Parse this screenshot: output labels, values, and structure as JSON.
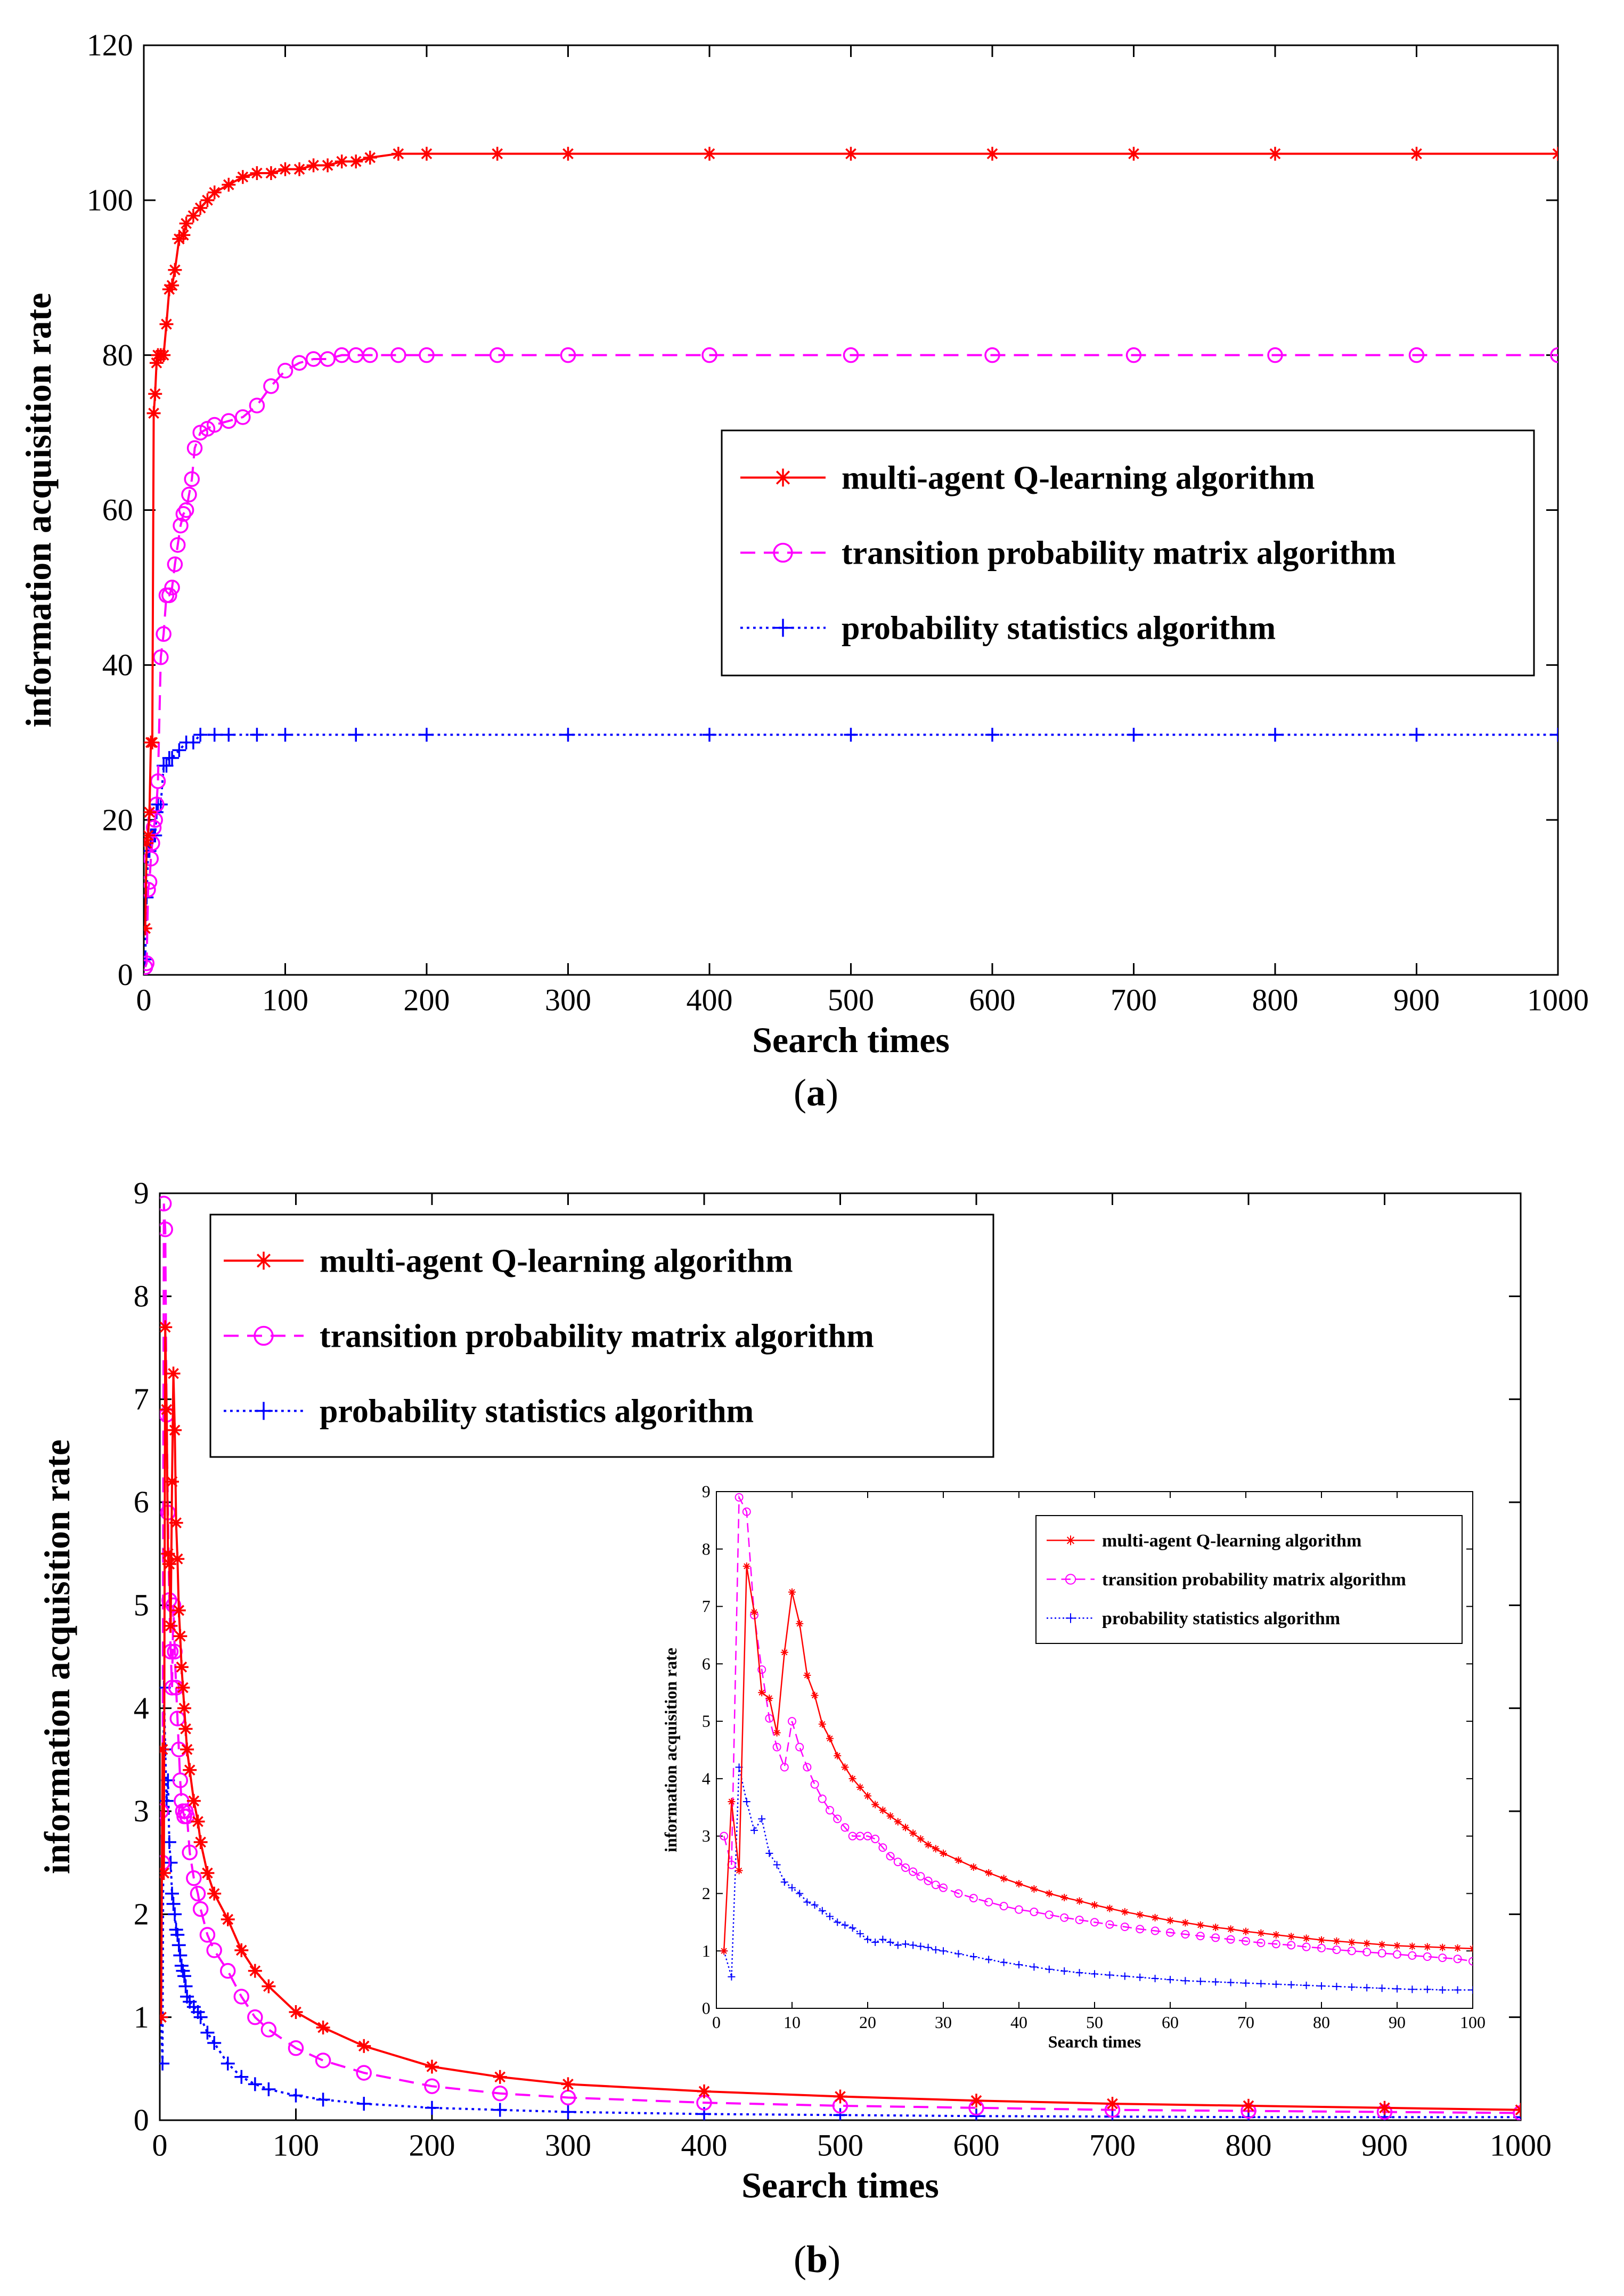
{
  "colors": {
    "q": "#ff0000",
    "tpm": "#ff00ff",
    "ps": "#0000ff",
    "axis": "#000000"
  },
  "chart_data": [
    {
      "id": "a",
      "type": "line",
      "caption": {
        "open": "(",
        "letter": "a",
        "close": ")"
      },
      "xlabel": "Search times",
      "ylabel": "information acquisition rate",
      "xlim": [
        0,
        1000
      ],
      "ylim": [
        0,
        120
      ],
      "xticks": [
        "0",
        "100",
        "200",
        "300",
        "400",
        "500",
        "600",
        "700",
        "800",
        "900",
        "1000"
      ],
      "yticks": [
        "0",
        "20",
        "40",
        "60",
        "80",
        "100",
        "120"
      ],
      "legend_position": "right-middle",
      "series": [
        {
          "name": "multi-agent Q-learning algorithm",
          "color_key": "q",
          "marker": "asterisk",
          "dash": "solid",
          "x": [
            1,
            2,
            3,
            4,
            5,
            6,
            7,
            8,
            9,
            10,
            12,
            14,
            16,
            18,
            20,
            22,
            25,
            28,
            30,
            35,
            40,
            45,
            50,
            60,
            70,
            80,
            90,
            100,
            110,
            120,
            130,
            140,
            150,
            160,
            180,
            200,
            250,
            300,
            400,
            500,
            600,
            700,
            800,
            900,
            1000
          ],
          "y": [
            6,
            17,
            18,
            21,
            30,
            30,
            72.5,
            75,
            79,
            80,
            80,
            80,
            84,
            88.5,
            89,
            91,
            95,
            95.5,
            97,
            98,
            99,
            100,
            101,
            102,
            103,
            103.5,
            103.5,
            104,
            104,
            104.5,
            104.5,
            105,
            105,
            105.5,
            106,
            106,
            106,
            106,
            106,
            106,
            106,
            106,
            106,
            106,
            106
          ]
        },
        {
          "name": "transition probability matrix algorithm",
          "color_key": "tpm",
          "marker": "circle",
          "dash": "dashed",
          "x": [
            1,
            2,
            3,
            4,
            5,
            6,
            7,
            8,
            9,
            10,
            12,
            14,
            16,
            18,
            20,
            22,
            24,
            26,
            28,
            30,
            32,
            34,
            36,
            40,
            45,
            50,
            60,
            70,
            80,
            90,
            100,
            110,
            120,
            130,
            140,
            150,
            160,
            180,
            200,
            250,
            300,
            400,
            500,
            600,
            700,
            800,
            900,
            1000
          ],
          "y": [
            1,
            1.5,
            11,
            12,
            15,
            17,
            19,
            20,
            22,
            25,
            41,
            44,
            49,
            49,
            50,
            53,
            55.5,
            58,
            59.5,
            60,
            62,
            64,
            68,
            70,
            70.5,
            71,
            71.5,
            72,
            73.5,
            76,
            78,
            79,
            79.5,
            79.5,
            80,
            80,
            80,
            80,
            80,
            80,
            80,
            80,
            80,
            80,
            80,
            80,
            80,
            80
          ]
        },
        {
          "name": "probability statistics algorithm",
          "color_key": "ps",
          "marker": "plus",
          "dash": "dotted",
          "x": [
            1,
            2,
            3,
            4,
            5,
            6,
            7,
            8,
            9,
            10,
            12,
            14,
            16,
            18,
            20,
            25,
            30,
            35,
            40,
            50,
            60,
            80,
            100,
            150,
            200,
            300,
            400,
            500,
            600,
            700,
            800,
            900,
            1000
          ],
          "y": [
            2,
            10,
            16,
            16,
            18,
            18,
            18,
            18,
            21,
            22,
            22,
            27,
            27,
            28,
            28,
            29,
            30,
            30,
            31,
            31,
            31,
            31,
            31,
            31,
            31,
            31,
            31,
            31,
            31,
            31,
            31,
            31,
            31
          ]
        }
      ]
    },
    {
      "id": "b",
      "type": "line",
      "caption": {
        "open": "(",
        "letter": "b",
        "close": ")"
      },
      "xlabel": "Search times",
      "ylabel": "information acquisition rate",
      "xlim": [
        0,
        1000
      ],
      "ylim": [
        0,
        9
      ],
      "xticks": [
        "0",
        "100",
        "200",
        "300",
        "400",
        "500",
        "600",
        "700",
        "800",
        "900",
        "1000"
      ],
      "yticks": [
        "0",
        "1",
        "2",
        "3",
        "4",
        "5",
        "6",
        "7",
        "8",
        "9"
      ],
      "legend_position": "top-left",
      "series": [
        {
          "name": "multi-agent Q-learning algorithm",
          "color_key": "q",
          "marker": "asterisk",
          "dash": "solid",
          "x": [
            1,
            2,
            3,
            4,
            5,
            6,
            7,
            8,
            9,
            10,
            11,
            12,
            13,
            14,
            15,
            16,
            17,
            18,
            19,
            20,
            22,
            25,
            28,
            30,
            35,
            40,
            50,
            60,
            70,
            80,
            100,
            120,
            150,
            200,
            250,
            300,
            400,
            500,
            600,
            700,
            800,
            900,
            1000
          ],
          "y": [
            1,
            3.6,
            2.4,
            7.7,
            6.9,
            5.5,
            5.4,
            4.8,
            6.2,
            7.25,
            6.7,
            5.8,
            5.45,
            4.95,
            4.7,
            4.4,
            4.2,
            4.0,
            3.8,
            3.6,
            3.4,
            3.1,
            2.9,
            2.7,
            2.4,
            2.2,
            1.95,
            1.65,
            1.45,
            1.3,
            1.05,
            0.9,
            0.72,
            0.52,
            0.42,
            0.35,
            0.28,
            0.23,
            0.19,
            0.16,
            0.14,
            0.12,
            0.1
          ]
        },
        {
          "name": "transition probability matrix algorithm",
          "color_key": "tpm",
          "marker": "circle",
          "dash": "dashed",
          "x": [
            1,
            2,
            3,
            4,
            5,
            6,
            7,
            8,
            9,
            10,
            11,
            12,
            13,
            14,
            15,
            16,
            17,
            18,
            19,
            20,
            22,
            25,
            28,
            30,
            35,
            40,
            50,
            60,
            70,
            80,
            100,
            120,
            150,
            200,
            250,
            300,
            400,
            500,
            600,
            700,
            800,
            900,
            1000
          ],
          "y": [
            3,
            2.5,
            8.9,
            8.65,
            6.85,
            5.9,
            5.05,
            4.55,
            4.2,
            5.0,
            4.55,
            4.2,
            3.9,
            3.6,
            3.3,
            3.1,
            3.0,
            2.95,
            3.0,
            2.95,
            2.6,
            2.35,
            2.2,
            2.05,
            1.8,
            1.65,
            1.45,
            1.2,
            1.0,
            0.88,
            0.7,
            0.58,
            0.46,
            0.33,
            0.26,
            0.22,
            0.17,
            0.14,
            0.12,
            0.1,
            0.09,
            0.08,
            0.07
          ]
        },
        {
          "name": "probability statistics algorithm",
          "color_key": "ps",
          "marker": "plus",
          "dash": "dotted",
          "x": [
            1,
            2,
            3,
            4,
            5,
            6,
            7,
            8,
            9,
            10,
            11,
            12,
            13,
            14,
            15,
            16,
            17,
            18,
            19,
            20,
            22,
            25,
            28,
            30,
            35,
            40,
            50,
            60,
            70,
            80,
            100,
            120,
            150,
            200,
            250,
            300,
            400,
            500,
            600,
            700,
            800,
            900,
            1000
          ],
          "y": [
            1,
            0.55,
            4.2,
            3.6,
            3.1,
            3.3,
            2.7,
            2.5,
            2.2,
            2.1,
            2.0,
            1.85,
            1.8,
            1.7,
            1.6,
            1.5,
            1.45,
            1.4,
            1.3,
            1.2,
            1.15,
            1.1,
            1.05,
            1.0,
            0.85,
            0.75,
            0.55,
            0.42,
            0.35,
            0.3,
            0.24,
            0.2,
            0.16,
            0.12,
            0.1,
            0.08,
            0.06,
            0.05,
            0.04,
            0.035,
            0.03,
            0.03,
            0.03
          ]
        }
      ]
    },
    {
      "id": "b-inset",
      "type": "line",
      "xlabel": "Search times",
      "ylabel": "information acquisition rate",
      "xlim": [
        0,
        100
      ],
      "ylim": [
        0,
        9
      ],
      "xticks": [
        "0",
        "10",
        "20",
        "30",
        "40",
        "50",
        "60",
        "70",
        "80",
        "90",
        "100"
      ],
      "yticks": [
        "0",
        "1",
        "2",
        "3",
        "4",
        "5",
        "6",
        "7",
        "8",
        "9"
      ],
      "legend_position": "top-right",
      "series": [
        {
          "name": "multi-agent Q-learning algorithm",
          "color_key": "q",
          "marker": "asterisk",
          "dash": "solid",
          "x": [
            1,
            2,
            3,
            4,
            5,
            6,
            7,
            8,
            9,
            10,
            11,
            12,
            13,
            14,
            15,
            16,
            17,
            18,
            19,
            20,
            21,
            22,
            23,
            24,
            25,
            26,
            27,
            28,
            29,
            30,
            32,
            34,
            36,
            38,
            40,
            42,
            44,
            46,
            48,
            50,
            52,
            54,
            56,
            58,
            60,
            62,
            64,
            66,
            68,
            70,
            72,
            74,
            76,
            78,
            80,
            82,
            84,
            86,
            88,
            90,
            92,
            94,
            96,
            98,
            100
          ],
          "y": [
            1,
            3.6,
            2.4,
            7.7,
            6.9,
            5.5,
            5.4,
            4.8,
            6.2,
            7.25,
            6.7,
            5.8,
            5.45,
            4.95,
            4.7,
            4.4,
            4.2,
            4.0,
            3.85,
            3.7,
            3.55,
            3.45,
            3.35,
            3.25,
            3.15,
            3.05,
            2.95,
            2.85,
            2.78,
            2.7,
            2.58,
            2.46,
            2.36,
            2.26,
            2.17,
            2.08,
            2.0,
            1.93,
            1.87,
            1.8,
            1.74,
            1.68,
            1.63,
            1.58,
            1.53,
            1.49,
            1.45,
            1.41,
            1.38,
            1.34,
            1.31,
            1.28,
            1.25,
            1.22,
            1.19,
            1.17,
            1.15,
            1.13,
            1.11,
            1.09,
            1.08,
            1.07,
            1.06,
            1.05,
            1.04
          ]
        },
        {
          "name": "transition probability matrix algorithm",
          "color_key": "tpm",
          "marker": "circle",
          "dash": "dashed",
          "x": [
            1,
            2,
            3,
            4,
            5,
            6,
            7,
            8,
            9,
            10,
            11,
            12,
            13,
            14,
            15,
            16,
            17,
            18,
            19,
            20,
            21,
            22,
            23,
            24,
            25,
            26,
            27,
            28,
            29,
            30,
            32,
            34,
            36,
            38,
            40,
            42,
            44,
            46,
            48,
            50,
            52,
            54,
            56,
            58,
            60,
            62,
            64,
            66,
            68,
            70,
            72,
            74,
            76,
            78,
            80,
            82,
            84,
            86,
            88,
            90,
            92,
            94,
            96,
            98,
            100
          ],
          "y": [
            3,
            2.5,
            8.9,
            8.65,
            6.85,
            5.9,
            5.05,
            4.55,
            4.2,
            5.0,
            4.55,
            4.2,
            3.9,
            3.65,
            3.45,
            3.3,
            3.15,
            3.0,
            3.0,
            3.0,
            2.95,
            2.8,
            2.65,
            2.55,
            2.45,
            2.38,
            2.3,
            2.22,
            2.15,
            2.1,
            2.0,
            1.92,
            1.85,
            1.78,
            1.72,
            1.68,
            1.63,
            1.58,
            1.54,
            1.5,
            1.46,
            1.42,
            1.38,
            1.35,
            1.32,
            1.29,
            1.26,
            1.23,
            1.2,
            1.17,
            1.14,
            1.12,
            1.1,
            1.07,
            1.05,
            1.02,
            1.0,
            0.98,
            0.96,
            0.94,
            0.92,
            0.9,
            0.88,
            0.86,
            0.82
          ]
        },
        {
          "name": "probability statistics algorithm",
          "color_key": "ps",
          "marker": "plus",
          "dash": "dotted",
          "x": [
            1,
            2,
            3,
            4,
            5,
            6,
            7,
            8,
            9,
            10,
            11,
            12,
            13,
            14,
            15,
            16,
            17,
            18,
            19,
            20,
            21,
            22,
            23,
            24,
            25,
            26,
            27,
            28,
            29,
            30,
            32,
            34,
            36,
            38,
            40,
            42,
            44,
            46,
            48,
            50,
            52,
            54,
            56,
            58,
            60,
            62,
            64,
            66,
            68,
            70,
            72,
            74,
            76,
            78,
            80,
            82,
            84,
            86,
            88,
            90,
            92,
            94,
            96,
            98,
            100
          ],
          "y": [
            1,
            0.55,
            4.2,
            3.6,
            3.1,
            3.3,
            2.7,
            2.5,
            2.2,
            2.1,
            2.0,
            1.85,
            1.8,
            1.7,
            1.6,
            1.5,
            1.45,
            1.4,
            1.3,
            1.2,
            1.15,
            1.2,
            1.15,
            1.1,
            1.12,
            1.1,
            1.08,
            1.06,
            1.02,
            1.0,
            0.95,
            0.9,
            0.85,
            0.8,
            0.76,
            0.72,
            0.68,
            0.65,
            0.62,
            0.6,
            0.58,
            0.56,
            0.54,
            0.52,
            0.5,
            0.48,
            0.47,
            0.46,
            0.45,
            0.44,
            0.43,
            0.42,
            0.41,
            0.4,
            0.39,
            0.38,
            0.37,
            0.36,
            0.35,
            0.34,
            0.33,
            0.33,
            0.32,
            0.32,
            0.32
          ]
        }
      ]
    }
  ]
}
